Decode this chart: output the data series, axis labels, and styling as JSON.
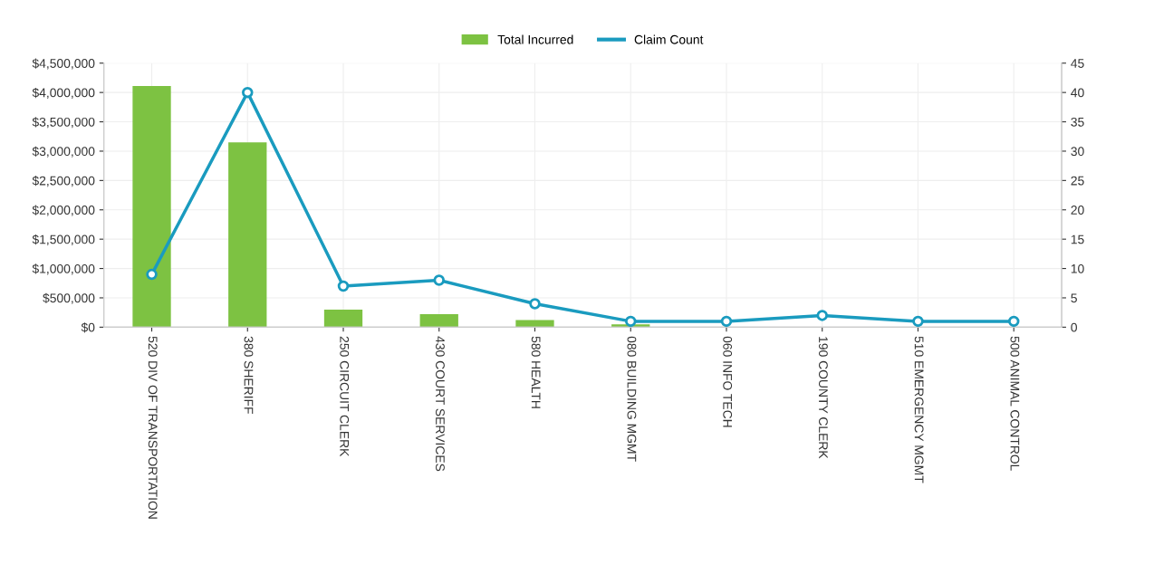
{
  "chart_data": {
    "type": "bar",
    "categories": [
      "520 DIV OF TRANSPORTATION",
      "380 SHERIFF",
      "250 CIRCUIT CLERK",
      "430 COURT SERVICES",
      "580 HEALTH",
      "080 BUILDING MGMT",
      "060 INFO TECH",
      "190 COUNTY CLERK",
      "510 EMERGENCY MGMT",
      "500 ANIMAL CONTROL"
    ],
    "series": [
      {
        "name": "Total Incurred",
        "color": "#7dc242",
        "values": [
          4110000,
          3150000,
          300000,
          220000,
          120000,
          50000,
          null,
          null,
          null,
          null
        ]
      },
      {
        "name": "Claim Count",
        "type": "line",
        "axis": "y2",
        "color": "#1a9bbf",
        "marker": "circle",
        "values": [
          9,
          40,
          7,
          8,
          4,
          1,
          1,
          2,
          1,
          1
        ]
      }
    ],
    "ylim": [
      0,
      4500000
    ],
    "yticks": [
      {
        "value": 0,
        "label": "$0"
      },
      {
        "value": 500000,
        "label": "$500,000"
      },
      {
        "value": 1000000,
        "label": "$1,000,000"
      },
      {
        "value": 1500000,
        "label": "$1,500,000"
      },
      {
        "value": 2000000,
        "label": "$2,000,000"
      },
      {
        "value": 2500000,
        "label": "$2,500,000"
      },
      {
        "value": 3000000,
        "label": "$3,000,000"
      },
      {
        "value": 3500000,
        "label": "$3,500,000"
      },
      {
        "value": 4000000,
        "label": "$4,000,000"
      },
      {
        "value": 4500000,
        "label": "$4,500,000"
      }
    ],
    "y2lim": [
      0,
      45
    ],
    "y2ticks": [
      0,
      5,
      10,
      15,
      20,
      25,
      30,
      35,
      40,
      45
    ],
    "grid": true,
    "legend": "top"
  }
}
